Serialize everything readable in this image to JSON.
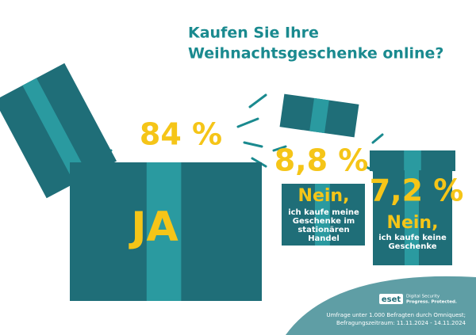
{
  "chart_data": {
    "type": "gift",
    "title": [
      "Kaufen Sie Ihre",
      "Weihnachtsgeschenke online?"
    ],
    "categories": [
      "JA",
      "Nein, ich kaufe meine Geschenke im stationären Handel",
      "Nein, ich kaufe keine Geschenke"
    ],
    "values": [
      84,
      8.8,
      7.2
    ],
    "value_labels": [
      "84 %",
      "8,8 %",
      "7,2 %"
    ],
    "color": "#1f6e78",
    "source": [
      "Umfrage unter 1.000 Befragten durch Omniquest;",
      "Befragungszeitraum: 11.11.2024 - 14.11.2024"
    ],
    "logo": {
      "brand": "eset",
      "tagline": [
        "Digital Security",
        "Progress. Protected."
      ]
    }
  }
}
